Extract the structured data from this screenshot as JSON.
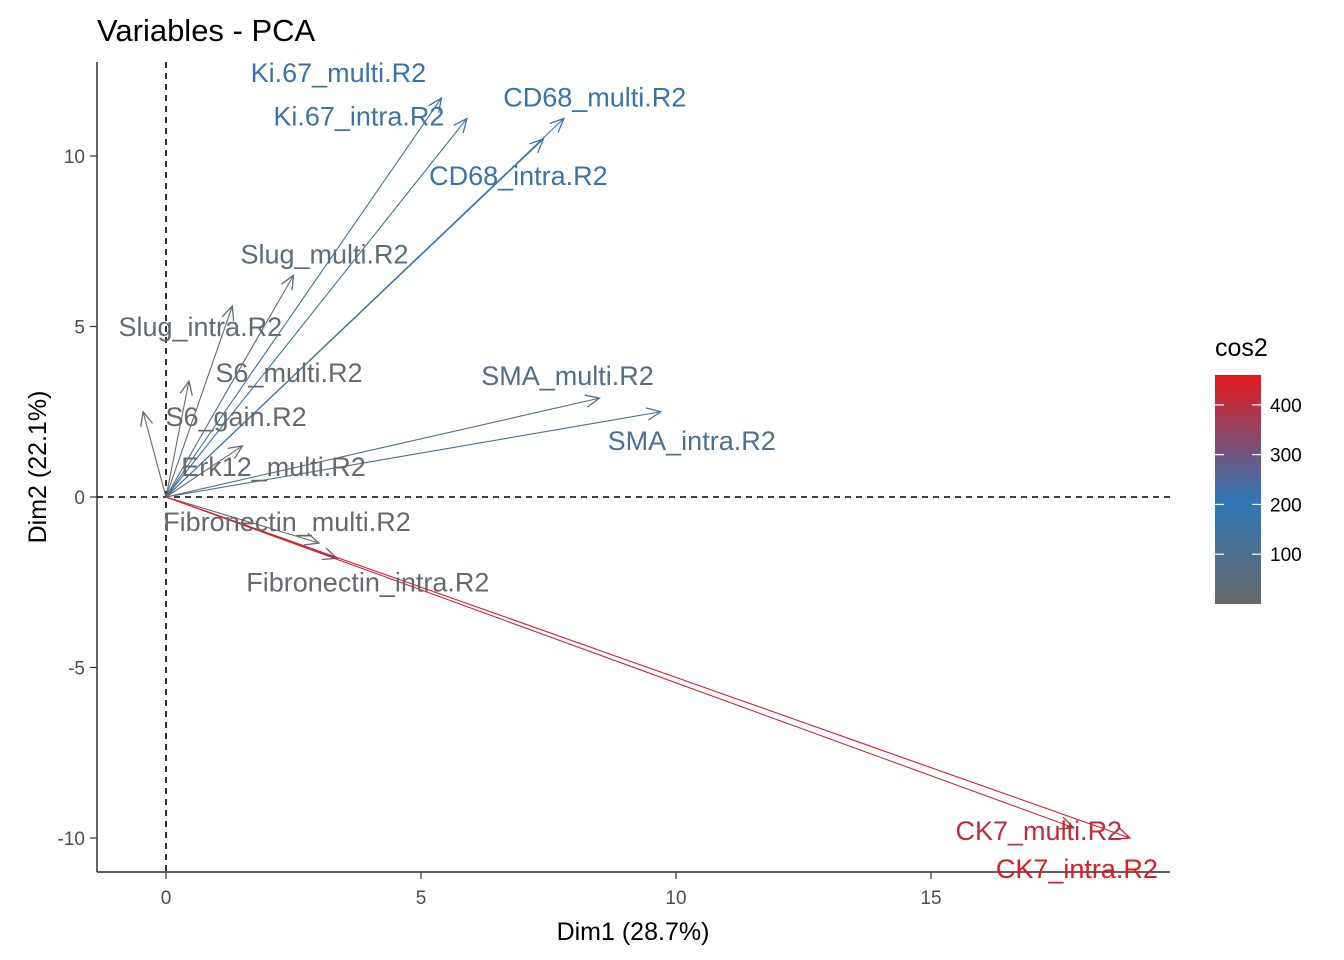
{
  "chart_data": {
    "type": "scatter",
    "title": "Variables - PCA",
    "xlabel": "Dim1 (28.7%)",
    "ylabel": "Dim2 (22.1%)",
    "xlim": [
      -1.35,
      19.65
    ],
    "ylim": [
      -10.95,
      12.8
    ],
    "x_ticks": [
      0,
      5,
      10,
      15
    ],
    "y_ticks": [
      -10,
      -5,
      0,
      5,
      10
    ],
    "grid": false,
    "reference_lines": {
      "x": 0,
      "y": 0,
      "style": "dashed"
    },
    "legend": {
      "title": "cos2",
      "placement": "right",
      "min": 0,
      "max": 460,
      "ticks": [
        100,
        200,
        300,
        400
      ],
      "colors": [
        "#696969",
        "#2E77B6",
        "#E41A1C"
      ]
    },
    "series": [
      {
        "name": "Ki.67_multi.R2",
        "x": 5.4,
        "y": 11.7,
        "cos2": 166
      },
      {
        "name": "Ki.67_intra.R2",
        "x": 5.9,
        "y": 11.1,
        "cos2": 158
      },
      {
        "name": "CD68_multi.R2",
        "x": 7.8,
        "y": 11.1,
        "cos2": 184
      },
      {
        "name": "CD68_intra.R2",
        "x": 7.4,
        "y": 10.5,
        "cos2": 165
      },
      {
        "name": "Slug_multi.R2",
        "x": 2.5,
        "y": 6.5,
        "cos2": 48
      },
      {
        "name": "Slug_intra.R2",
        "x": 1.3,
        "y": 5.6,
        "cos2": 33
      },
      {
        "name": "S6_multi.R2",
        "x": 0.45,
        "y": 3.4,
        "cos2": 12
      },
      {
        "name": "S6_gain.R2",
        "x": -0.45,
        "y": 2.5,
        "cos2": 6
      },
      {
        "name": "Erk12_multi.R2",
        "x": 1.5,
        "y": 1.5,
        "cos2": 5
      },
      {
        "name": "SMA_multi.R2",
        "x": 8.5,
        "y": 2.9,
        "cos2": 81
      },
      {
        "name": "SMA_intra.R2",
        "x": 9.7,
        "y": 2.5,
        "cos2": 101
      },
      {
        "name": "Fibronectin_multi.R2",
        "x": 3.0,
        "y": -1.35,
        "cos2": 11
      },
      {
        "name": "Fibronectin_intra.R2",
        "x": 3.35,
        "y": -1.8,
        "cos2": 14
      },
      {
        "name": "CK7_multi.R2",
        "x": 17.8,
        "y": -9.7,
        "cos2": 411
      },
      {
        "name": "CK7_intra.R2",
        "x": 18.9,
        "y": -10.0,
        "cos2": 457
      }
    ]
  }
}
